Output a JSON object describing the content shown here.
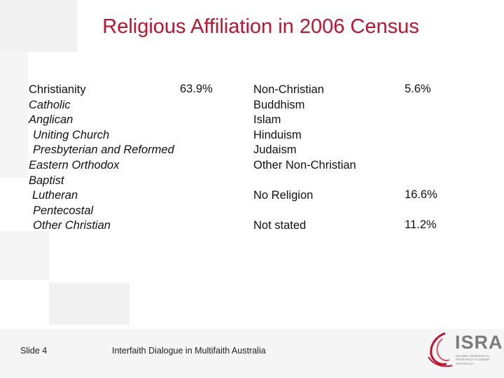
{
  "title": "Religious Affiliation in 2006 Census",
  "left_items": [
    "Christianity",
    "Catholic",
    "Anglican",
    "Uniting Church",
    "Presbyterian and Reformed",
    "Eastern Orthodox",
    "Baptist",
    "Lutheran",
    "Pentecostal",
    "Other Christian"
  ],
  "christianity_pct": "63.9%",
  "right_items": [
    "Non-Christian",
    "Buddhism",
    "Islam",
    "Hinduism",
    "Judaism",
    "Other Non-Christian"
  ],
  "non_christian_pct": "5.6%",
  "no_religion_label": "No Religion",
  "no_religion_pct": "16.6%",
  "not_stated_label": "Not stated",
  "not_stated_pct": "11.2%",
  "footer": {
    "slide": "Slide 4",
    "caption": "Interfaith Dialogue in Multifaith Australia"
  },
  "logo": {
    "word": "ISRA",
    "sub": "ISLAMIC SCIENCES & RESEARCH ACADEMY AUSTRALIA"
  },
  "colors": {
    "title": "#c4112f",
    "logo_red": "#c4112f",
    "logo_grey": "#7b7b7b"
  }
}
